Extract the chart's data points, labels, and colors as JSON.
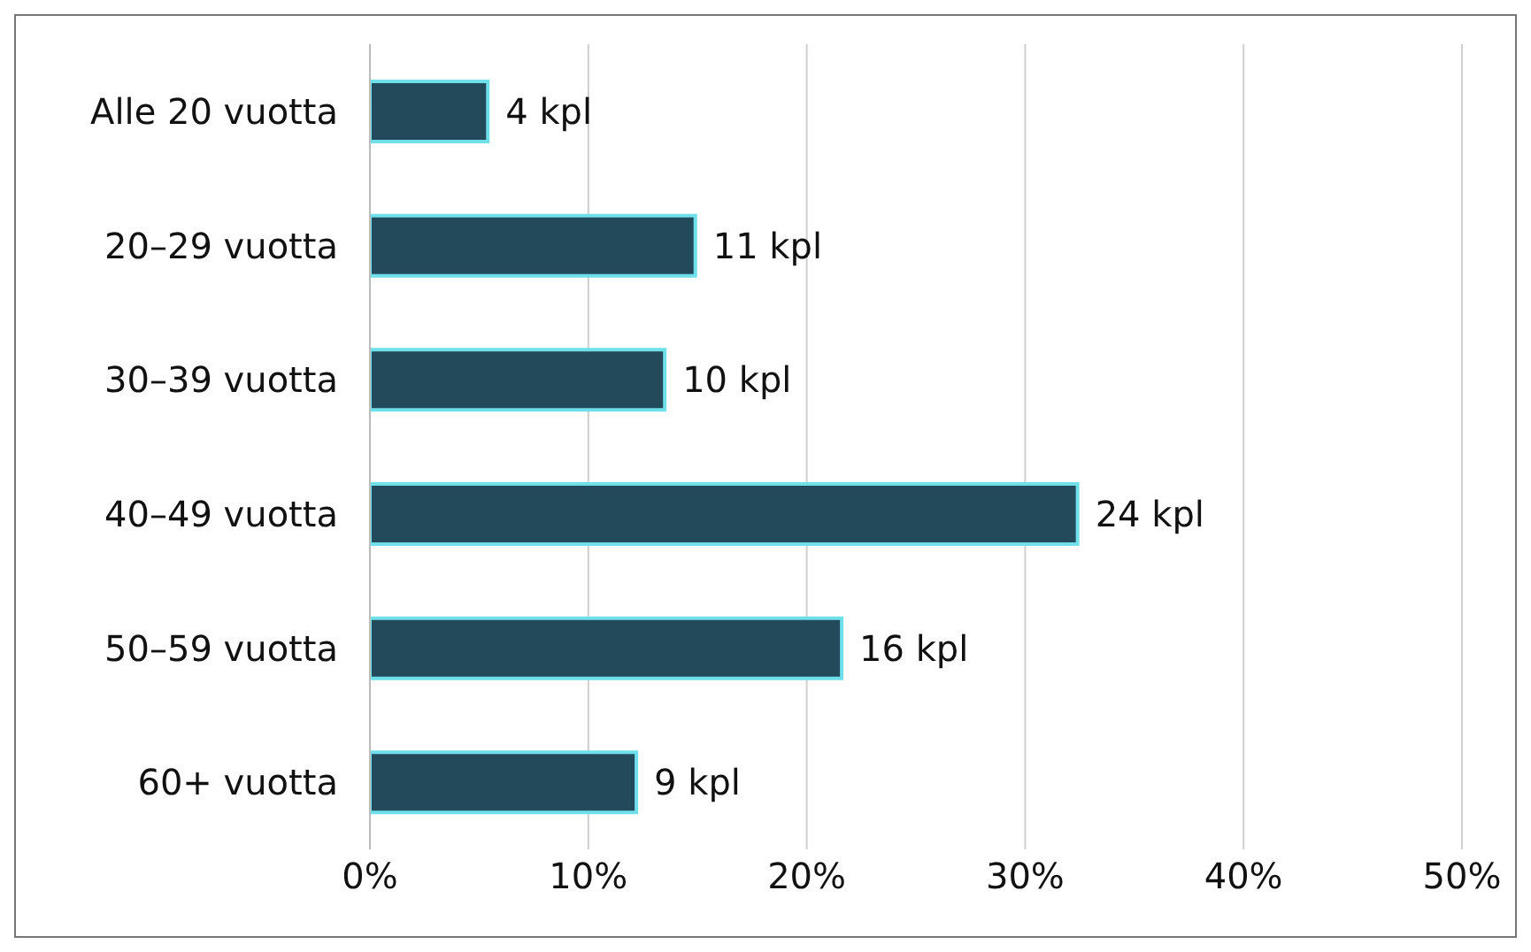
{
  "chart_data": {
    "type": "bar",
    "orientation": "horizontal",
    "categories": [
      "Alle 20 vuotta",
      "20–29 vuotta",
      "30–39 vuotta",
      "40–49 vuotta",
      "50–59 vuotta",
      "60+ vuotta"
    ],
    "values": [
      5.4,
      14.9,
      13.5,
      32.4,
      21.6,
      12.2
    ],
    "annotations": [
      {
        "text": "4 kpl",
        "x": 5.4,
        "y": "Alle 20 vuotta"
      },
      {
        "text": "11 kpl",
        "x": 14.9,
        "y": "20–29 vuotta"
      },
      {
        "text": "10 kpl",
        "x": 13.5,
        "y": "30–39 vuotta"
      },
      {
        "text": "24 kpl",
        "x": 32.4,
        "y": "40–49 vuotta"
      },
      {
        "text": "16 kpl",
        "x": 21.6,
        "y": "50–59 vuotta"
      },
      {
        "text": "9 kpl",
        "x": 12.2,
        "y": "60+ vuotta"
      }
    ],
    "color": "#234a5a",
    "xlim": [
      0,
      50
    ],
    "xticks": [
      {
        "value": 0,
        "label": "0%"
      },
      {
        "value": 10,
        "label": "10%"
      },
      {
        "value": 20,
        "label": "20%"
      },
      {
        "value": 30,
        "label": "30%"
      },
      {
        "value": 40,
        "label": "40%"
      },
      {
        "value": 50,
        "label": "50%"
      }
    ],
    "grid": "x"
  }
}
